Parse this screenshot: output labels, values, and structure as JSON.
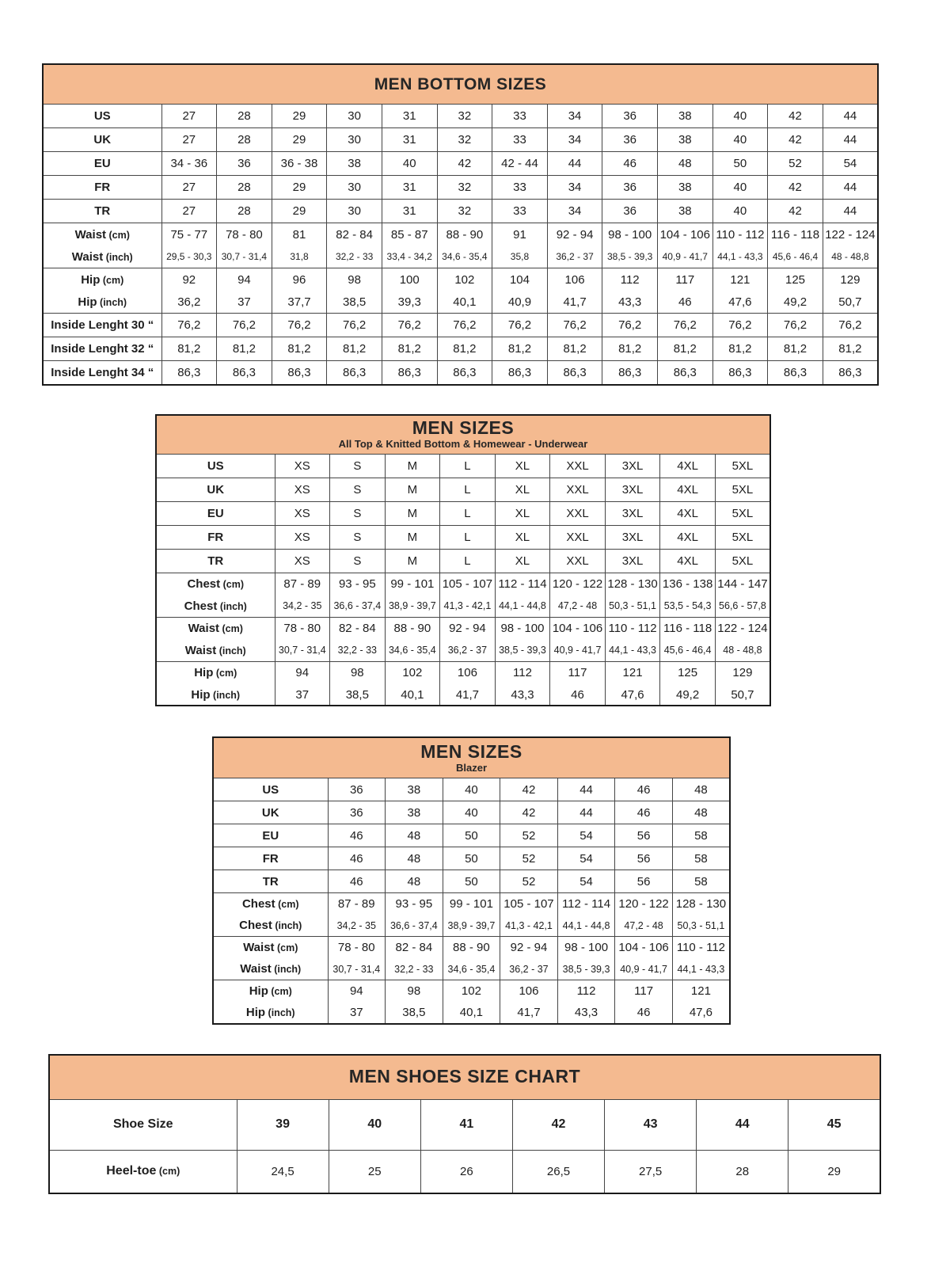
{
  "colors": {
    "header_bg": "#F4BA90",
    "outer_border": "#1A1A1A",
    "inner_border": "#454545",
    "text": "#1E1E1E"
  },
  "tables": [
    {
      "key": "men-bottom-sizes",
      "title": "MEN BOTTOM SIZES",
      "subtitle": null,
      "sections": [
        {
          "rows": [
            {
              "label": "US",
              "values": [
                "27",
                "28",
                "29",
                "30",
                "31",
                "32",
                "33",
                "34",
                "36",
                "38",
                "40",
                "42",
                "44"
              ]
            }
          ]
        },
        {
          "rows": [
            {
              "label": "UK",
              "values": [
                "27",
                "28",
                "29",
                "30",
                "31",
                "32",
                "33",
                "34",
                "36",
                "38",
                "40",
                "42",
                "44"
              ]
            }
          ]
        },
        {
          "rows": [
            {
              "label": "EU",
              "values": [
                "34 - 36",
                "36",
                "36 - 38",
                "38",
                "40",
                "42",
                "42 - 44",
                "44",
                "46",
                "48",
                "50",
                "52",
                "54"
              ]
            }
          ]
        },
        {
          "rows": [
            {
              "label": "FR",
              "values": [
                "27",
                "28",
                "29",
                "30",
                "31",
                "32",
                "33",
                "34",
                "36",
                "38",
                "40",
                "42",
                "44"
              ]
            }
          ]
        },
        {
          "rows": [
            {
              "label": "TR",
              "values": [
                "27",
                "28",
                "29",
                "30",
                "31",
                "32",
                "33",
                "34",
                "36",
                "38",
                "40",
                "42",
                "44"
              ]
            }
          ]
        },
        {
          "rows": [
            {
              "label": "Waist",
              "unit": "(cm)",
              "values": [
                "75 - 77",
                "78 - 80",
                "81",
                "82 - 84",
                "85 - 87",
                "88 - 90",
                "91",
                "92 - 94",
                "98 - 100",
                "104 - 106",
                "110 - 112",
                "116 - 118",
                "122 - 124"
              ]
            },
            {
              "label": "Waist",
              "unit": "(inch)",
              "small": true,
              "values": [
                "29,5 - 30,3",
                "30,7 - 31,4",
                "31,8",
                "32,2 - 33",
                "33,4 - 34,2",
                "34,6 - 35,4",
                "35,8",
                "36,2 - 37",
                "38,5 - 39,3",
                "40,9 - 41,7",
                "44,1 - 43,3",
                "45,6 - 46,4",
                "48 - 48,8"
              ]
            }
          ]
        },
        {
          "rows": [
            {
              "label": "Hip",
              "unit": "(cm)",
              "values": [
                "92",
                "94",
                "96",
                "98",
                "100",
                "102",
                "104",
                "106",
                "112",
                "117",
                "121",
                "125",
                "129"
              ]
            },
            {
              "label": "Hip",
              "unit": "(inch)",
              "values": [
                "36,2",
                "37",
                "37,7",
                "38,5",
                "39,3",
                "40,1",
                "40,9",
                "41,7",
                "43,3",
                "46",
                "47,6",
                "49,2",
                "50,7"
              ]
            }
          ]
        },
        {
          "rows": [
            {
              "label": "Inside Lenght 30 “",
              "values": [
                "76,2",
                "76,2",
                "76,2",
                "76,2",
                "76,2",
                "76,2",
                "76,2",
                "76,2",
                "76,2",
                "76,2",
                "76,2",
                "76,2",
                "76,2"
              ]
            }
          ]
        },
        {
          "rows": [
            {
              "label": "Inside Lenght 32 “",
              "values": [
                "81,2",
                "81,2",
                "81,2",
                "81,2",
                "81,2",
                "81,2",
                "81,2",
                "81,2",
                "81,2",
                "81,2",
                "81,2",
                "81,2",
                "81,2"
              ]
            }
          ]
        },
        {
          "rows": [
            {
              "label": "Inside Lenght 34 “",
              "values": [
                "86,3",
                "86,3",
                "86,3",
                "86,3",
                "86,3",
                "86,3",
                "86,3",
                "86,3",
                "86,3",
                "86,3",
                "86,3",
                "86,3",
                "86,3"
              ]
            }
          ]
        }
      ]
    },
    {
      "key": "men-sizes-tops",
      "title": "MEN SIZES",
      "subtitle": "All Top & Knitted Bottom & Homewear - Underwear",
      "sections": [
        {
          "rows": [
            {
              "label": "US",
              "values": [
                "XS",
                "S",
                "M",
                "L",
                "XL",
                "XXL",
                "3XL",
                "4XL",
                "5XL"
              ]
            }
          ]
        },
        {
          "rows": [
            {
              "label": "UK",
              "values": [
                "XS",
                "S",
                "M",
                "L",
                "XL",
                "XXL",
                "3XL",
                "4XL",
                "5XL"
              ]
            }
          ]
        },
        {
          "rows": [
            {
              "label": "EU",
              "values": [
                "XS",
                "S",
                "M",
                "L",
                "XL",
                "XXL",
                "3XL",
                "4XL",
                "5XL"
              ]
            }
          ]
        },
        {
          "rows": [
            {
              "label": "FR",
              "values": [
                "XS",
                "S",
                "M",
                "L",
                "XL",
                "XXL",
                "3XL",
                "4XL",
                "5XL"
              ]
            }
          ]
        },
        {
          "rows": [
            {
              "label": "TR",
              "values": [
                "XS",
                "S",
                "M",
                "L",
                "XL",
                "XXL",
                "3XL",
                "4XL",
                "5XL"
              ]
            }
          ]
        },
        {
          "rows": [
            {
              "label": "Chest",
              "unit": "(cm)",
              "values": [
                "87 - 89",
                "93 - 95",
                "99 - 101",
                "105 - 107",
                "112 - 114",
                "120 - 122",
                "128 - 130",
                "136 - 138",
                "144 - 147"
              ]
            },
            {
              "label": "Chest",
              "unit": "(inch)",
              "small": true,
              "values": [
                "34,2 - 35",
                "36,6 - 37,4",
                "38,9 - 39,7",
                "41,3 - 42,1",
                "44,1 - 44,8",
                "47,2 - 48",
                "50,3 - 51,1",
                "53,5 - 54,3",
                "56,6 - 57,8"
              ]
            }
          ]
        },
        {
          "rows": [
            {
              "label": "Waist",
              "unit": "(cm)",
              "values": [
                "78 - 80",
                "82 - 84",
                "88 - 90",
                "92 - 94",
                "98 - 100",
                "104 - 106",
                "110 - 112",
                "116 - 118",
                "122 - 124"
              ]
            },
            {
              "label": "Waist",
              "unit": "(inch)",
              "small": true,
              "values": [
                "30,7 - 31,4",
                "32,2 - 33",
                "34,6 - 35,4",
                "36,2 - 37",
                "38,5 - 39,3",
                "40,9 - 41,7",
                "44,1 - 43,3",
                "45,6 - 46,4",
                "48 - 48,8"
              ]
            }
          ]
        },
        {
          "rows": [
            {
              "label": "Hip",
              "unit": "(cm)",
              "values": [
                "94",
                "98",
                "102",
                "106",
                "112",
                "117",
                "121",
                "125",
                "129"
              ]
            },
            {
              "label": "Hip",
              "unit": "(inch)",
              "values": [
                "37",
                "38,5",
                "40,1",
                "41,7",
                "43,3",
                "46",
                "47,6",
                "49,2",
                "50,7"
              ]
            }
          ]
        }
      ]
    },
    {
      "key": "men-sizes-blazer",
      "title": "MEN SIZES",
      "subtitle": "Blazer",
      "sections": [
        {
          "rows": [
            {
              "label": "US",
              "values": [
                "36",
                "38",
                "40",
                "42",
                "44",
                "46",
                "48"
              ]
            }
          ]
        },
        {
          "rows": [
            {
              "label": "UK",
              "values": [
                "36",
                "38",
                "40",
                "42",
                "44",
                "46",
                "48"
              ]
            }
          ]
        },
        {
          "rows": [
            {
              "label": "EU",
              "values": [
                "46",
                "48",
                "50",
                "52",
                "54",
                "56",
                "58"
              ]
            }
          ]
        },
        {
          "rows": [
            {
              "label": "FR",
              "values": [
                "46",
                "48",
                "50",
                "52",
                "54",
                "56",
                "58"
              ]
            }
          ]
        },
        {
          "rows": [
            {
              "label": "TR",
              "values": [
                "46",
                "48",
                "50",
                "52",
                "54",
                "56",
                "58"
              ]
            }
          ]
        },
        {
          "rows": [
            {
              "label": "Chest",
              "unit": "(cm)",
              "values": [
                "87 - 89",
                "93 - 95",
                "99 - 101",
                "105 - 107",
                "112 - 114",
                "120 - 122",
                "128 - 130"
              ]
            },
            {
              "label": "Chest",
              "unit": "(inch)",
              "small": true,
              "values": [
                "34,2 - 35",
                "36,6 - 37,4",
                "38,9 - 39,7",
                "41,3 - 42,1",
                "44,1 - 44,8",
                "47,2 - 48",
                "50,3 - 51,1"
              ]
            }
          ]
        },
        {
          "rows": [
            {
              "label": "Waist",
              "unit": "(cm)",
              "values": [
                "78 - 80",
                "82 - 84",
                "88 - 90",
                "92 - 94",
                "98 - 100",
                "104 - 106",
                "110 - 112"
              ]
            },
            {
              "label": "Waist",
              "unit": "(inch)",
              "small": true,
              "values": [
                "30,7 - 31,4",
                "32,2 - 33",
                "34,6 - 35,4",
                "36,2 - 37",
                "38,5 - 39,3",
                "40,9 - 41,7",
                "44,1 - 43,3"
              ]
            }
          ]
        },
        {
          "rows": [
            {
              "label": "Hip",
              "unit": "(cm)",
              "values": [
                "94",
                "98",
                "102",
                "106",
                "112",
                "117",
                "121"
              ]
            },
            {
              "label": "Hip",
              "unit": "(inch)",
              "values": [
                "37",
                "38,5",
                "40,1",
                "41,7",
                "43,3",
                "46",
                "47,6"
              ]
            }
          ]
        }
      ]
    },
    {
      "key": "men-shoes-size-chart",
      "title": "MEN SHOES SIZE CHART",
      "subtitle": null,
      "sections": [
        {
          "rows": [
            {
              "label": "Shoe Size",
              "bold_values": true,
              "values": [
                "39",
                "40",
                "41",
                "42",
                "43",
                "44",
                "45"
              ]
            }
          ]
        },
        {
          "rows": [
            {
              "label": "Heel-toe",
              "unit": "(cm)",
              "heel": true,
              "values": [
                "24,5",
                "25",
                "26",
                "26,5",
                "27,5",
                "28",
                "29"
              ]
            }
          ]
        }
      ]
    }
  ]
}
